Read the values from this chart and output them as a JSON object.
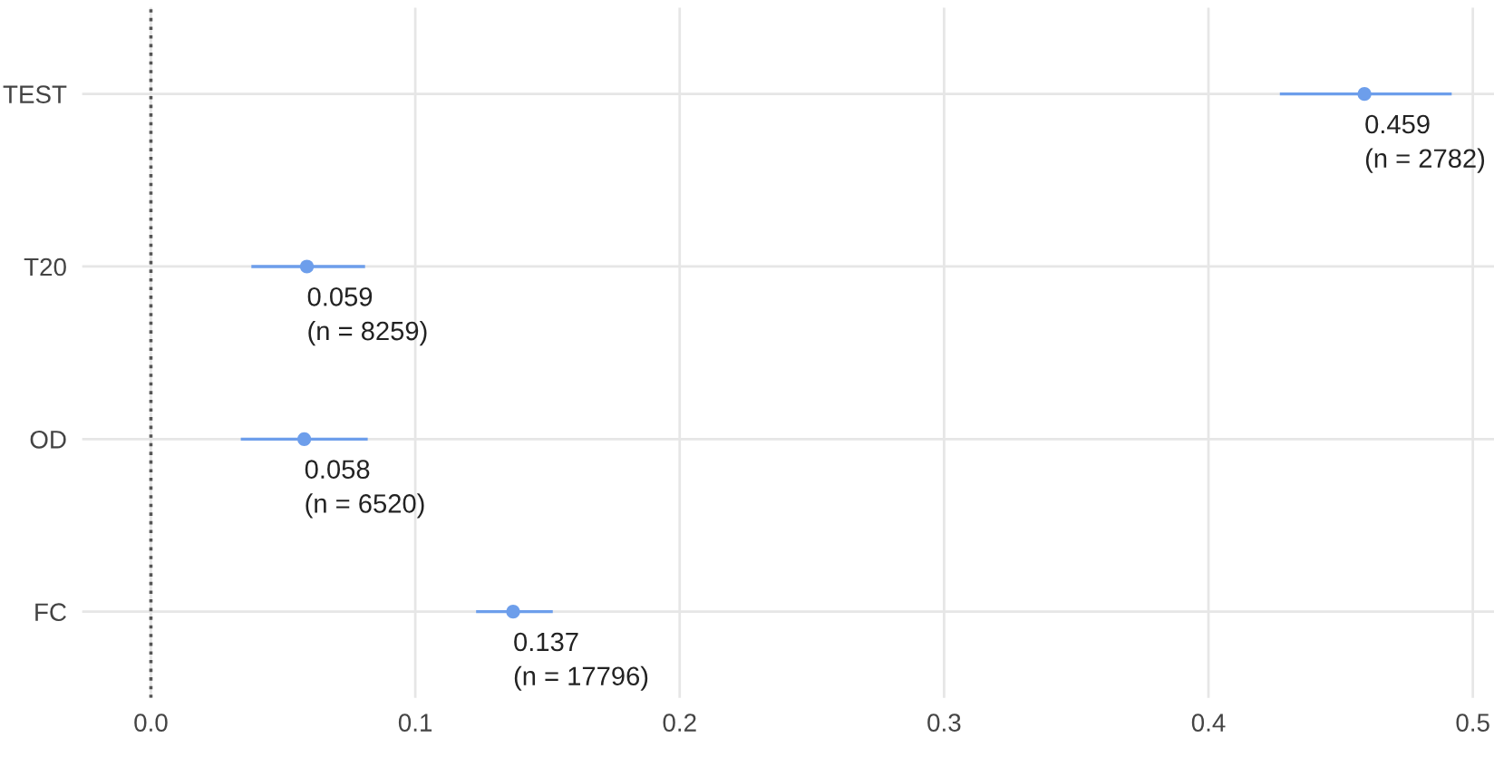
{
  "chart_data": {
    "type": "scatter",
    "orientation": "horizontal",
    "categories": [
      "TEST",
      "T20",
      "OD",
      "FC"
    ],
    "values": [
      0.459,
      0.059,
      0.058,
      0.137
    ],
    "errors": [
      [
        0.427,
        0.492
      ],
      [
        0.038,
        0.081
      ],
      [
        0.034,
        0.082
      ],
      [
        0.123,
        0.152
      ]
    ],
    "value_labels": [
      "0.459\n(n = 2782)",
      "0.059\n(n = 8259)",
      "0.058\n(n = 6520)",
      "0.137\n(n = 17796)"
    ],
    "color": "#6d9eeb",
    "marker": "circle",
    "xlim": [
      -0.026,
      0.508
    ],
    "xticks": [
      {
        "value": 0,
        "label": "0.0"
      },
      0.1,
      0.2,
      0.3,
      0.4,
      0.5
    ],
    "grid": true,
    "ref_lines": [
      {
        "axis": "x",
        "value": 0,
        "label": null,
        "color": "#555555",
        "line_style": "dotted"
      }
    ]
  }
}
